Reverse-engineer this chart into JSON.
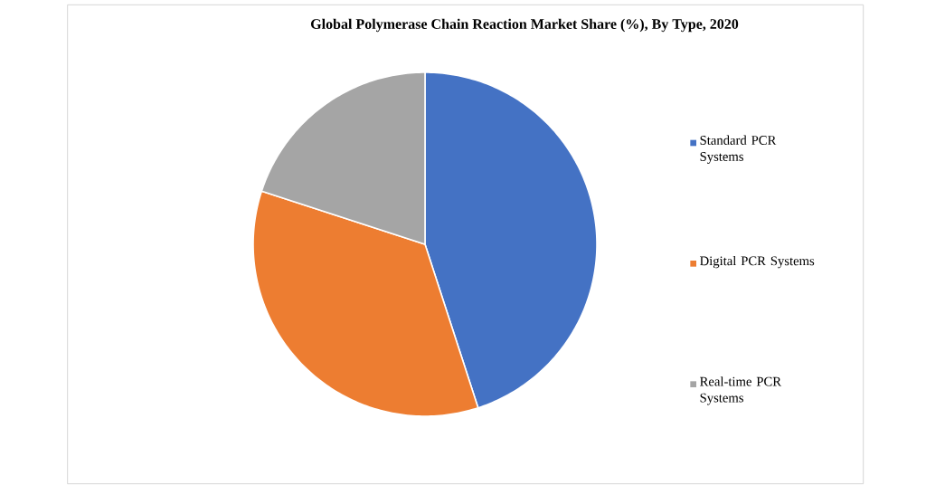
{
  "chart_data": {
    "type": "pie",
    "title": "Global Polymerase Chain Reaction  Market Share (%), By Type, 2020",
    "categories": [
      "Standard PCR Systems",
      "Digital PCR Systems",
      "Real-time PCR Systems"
    ],
    "values": [
      45,
      35,
      20
    ],
    "colors": [
      "#4472c4",
      "#ed7d31",
      "#a5a5a5"
    ],
    "legend": "right"
  }
}
